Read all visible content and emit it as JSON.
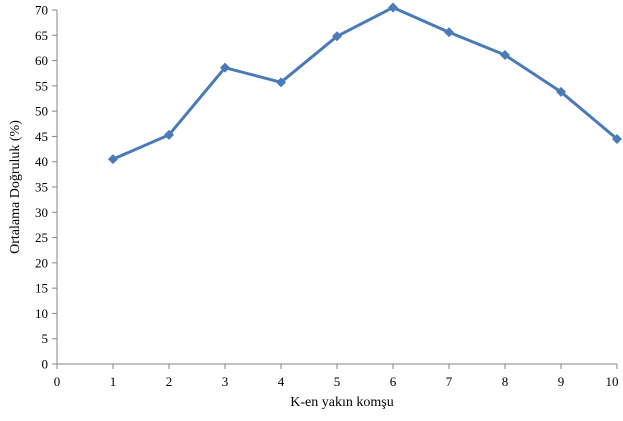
{
  "chart_data": {
    "type": "line",
    "title": "",
    "xlabel": "K-en yakın komşu",
    "ylabel": "Ortalama Doğruluk (%)",
    "xlim": [
      0,
      10
    ],
    "ylim": [
      0,
      70
    ],
    "x_ticks": [
      0,
      1,
      2,
      3,
      4,
      5,
      6,
      7,
      8,
      9,
      10
    ],
    "y_ticks": [
      0,
      5,
      10,
      15,
      20,
      25,
      30,
      35,
      40,
      45,
      50,
      55,
      60,
      65,
      70
    ],
    "grid": false,
    "legend": "none",
    "series": [
      {
        "color": "#4a7ab8",
        "marker": "diamond",
        "x": [
          1,
          2,
          3,
          4,
          5,
          6,
          7,
          8,
          9,
          10
        ],
        "values": [
          40.5,
          45.3,
          58.6,
          55.7,
          64.8,
          70.5,
          65.6,
          61.1,
          53.8,
          44.5
        ]
      }
    ]
  }
}
